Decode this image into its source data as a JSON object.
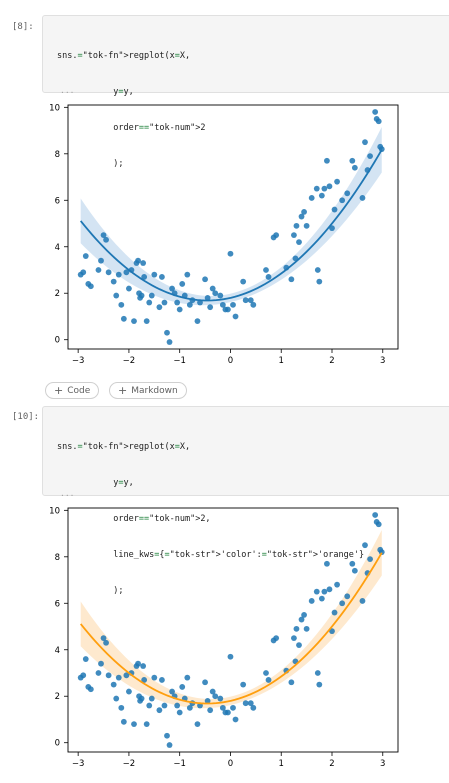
{
  "cells": [
    {
      "prompt": "[8]:",
      "code": [
        [
          "sns",
          ".",
          "regplot",
          "(x=X,"
        ],
        [
          "",
          "",
          "",
          "y=y,"
        ],
        [
          "",
          "",
          "",
          "order=2"
        ],
        [
          "",
          "",
          "",
          ");"
        ]
      ],
      "code_lines": [
        "sns.regplot(x=X,",
        "           y=y,",
        "           order=2",
        "           );"
      ],
      "line_color": "#1f77b4",
      "band_color": "#c6dbef"
    },
    {
      "prompt": "[10]:",
      "code_lines": [
        "sns.regplot(x=X,",
        "           y=y,",
        "           order=2,",
        "           line_kws={'color':'orange'}",
        "           );"
      ],
      "line_color": "#ff9f0e",
      "band_color": "#fde2bd"
    }
  ],
  "add_buttons": {
    "code_label": "Code",
    "markdown_label": "Markdown"
  },
  "colors": {
    "points": "#1f77b4",
    "points_alpha": "0.85"
  },
  "chart_data": [
    {
      "type": "scatter",
      "title": "",
      "xlabel": "",
      "ylabel": "",
      "xlim": [
        -3.2,
        3.3
      ],
      "ylim": [
        -0.4,
        10.1
      ],
      "x_ticks": [
        -3,
        -2,
        -1,
        0,
        1,
        2,
        3
      ],
      "y_ticks": [
        0,
        2,
        4,
        6,
        8,
        10
      ],
      "fit": {
        "order": 2,
        "a": 0.55,
        "b": 0.5,
        "c": 1.8
      },
      "points": [
        [
          -2.95,
          2.8
        ],
        [
          -2.9,
          2.9
        ],
        [
          -2.85,
          3.6
        ],
        [
          -2.8,
          2.4
        ],
        [
          -2.75,
          2.3
        ],
        [
          -2.6,
          3.0
        ],
        [
          -2.55,
          3.4
        ],
        [
          -2.5,
          4.5
        ],
        [
          -2.45,
          4.3
        ],
        [
          -2.4,
          2.9
        ],
        [
          -2.3,
          2.5
        ],
        [
          -2.25,
          1.9
        ],
        [
          -2.2,
          2.8
        ],
        [
          -2.15,
          1.5
        ],
        [
          -2.1,
          0.9
        ],
        [
          -2.05,
          2.9
        ],
        [
          -2.0,
          2.2
        ],
        [
          -1.95,
          3.0
        ],
        [
          -1.9,
          0.8
        ],
        [
          -1.85,
          3.3
        ],
        [
          -1.82,
          3.4
        ],
        [
          -1.8,
          2.0
        ],
        [
          -1.78,
          1.8
        ],
        [
          -1.75,
          1.9
        ],
        [
          -1.72,
          3.3
        ],
        [
          -1.7,
          2.7
        ],
        [
          -1.65,
          0.8
        ],
        [
          -1.6,
          1.6
        ],
        [
          -1.55,
          1.9
        ],
        [
          -1.5,
          2.8
        ],
        [
          -1.4,
          1.4
        ],
        [
          -1.35,
          2.7
        ],
        [
          -1.3,
          1.6
        ],
        [
          -1.25,
          0.3
        ],
        [
          -1.2,
          -0.1
        ],
        [
          -1.15,
          2.2
        ],
        [
          -1.1,
          2.0
        ],
        [
          -1.05,
          1.6
        ],
        [
          -1.0,
          1.3
        ],
        [
          -0.95,
          2.4
        ],
        [
          -0.9,
          1.9
        ],
        [
          -0.85,
          2.8
        ],
        [
          -0.8,
          1.5
        ],
        [
          -0.75,
          1.7
        ],
        [
          -0.65,
          0.8
        ],
        [
          -0.6,
          1.6
        ],
        [
          -0.5,
          2.6
        ],
        [
          -0.45,
          1.8
        ],
        [
          -0.4,
          1.4
        ],
        [
          -0.35,
          2.2
        ],
        [
          -0.3,
          2.0
        ],
        [
          -0.2,
          1.9
        ],
        [
          -0.15,
          1.5
        ],
        [
          -0.1,
          1.3
        ],
        [
          -0.05,
          1.3
        ],
        [
          0.0,
          3.7
        ],
        [
          0.05,
          1.5
        ],
        [
          0.1,
          1.0
        ],
        [
          0.25,
          2.5
        ],
        [
          0.3,
          1.7
        ],
        [
          0.4,
          1.7
        ],
        [
          0.45,
          1.5
        ],
        [
          0.7,
          3.0
        ],
        [
          0.75,
          2.7
        ],
        [
          0.85,
          4.4
        ],
        [
          0.9,
          4.5
        ],
        [
          1.1,
          3.1
        ],
        [
          1.2,
          2.6
        ],
        [
          1.25,
          4.5
        ],
        [
          1.28,
          3.5
        ],
        [
          1.3,
          4.9
        ],
        [
          1.35,
          4.2
        ],
        [
          1.4,
          5.3
        ],
        [
          1.45,
          5.5
        ],
        [
          1.5,
          4.9
        ],
        [
          1.6,
          6.1
        ],
        [
          1.7,
          6.5
        ],
        [
          1.72,
          3.0
        ],
        [
          1.75,
          2.5
        ],
        [
          1.8,
          6.2
        ],
        [
          1.85,
          6.5
        ],
        [
          1.9,
          7.7
        ],
        [
          1.95,
          6.6
        ],
        [
          2.0,
          4.8
        ],
        [
          2.05,
          5.6
        ],
        [
          2.1,
          6.8
        ],
        [
          2.2,
          6.0
        ],
        [
          2.3,
          6.3
        ],
        [
          2.4,
          7.7
        ],
        [
          2.45,
          7.4
        ],
        [
          2.6,
          6.1
        ],
        [
          2.65,
          8.5
        ],
        [
          2.7,
          7.3
        ],
        [
          2.75,
          7.9
        ],
        [
          2.85,
          9.8
        ],
        [
          2.88,
          9.5
        ],
        [
          2.92,
          9.4
        ],
        [
          2.95,
          8.3
        ],
        [
          2.98,
          8.2
        ]
      ]
    },
    {
      "type": "scatter",
      "title": "",
      "xlabel": "",
      "ylabel": "",
      "xlim": [
        -3.2,
        3.3
      ],
      "ylim": [
        -0.4,
        10.1
      ],
      "x_ticks": [
        -3,
        -2,
        -1,
        0,
        1,
        2,
        3
      ],
      "y_ticks": [
        0,
        2,
        4,
        6,
        8,
        10
      ],
      "fit": {
        "order": 2,
        "a": 0.55,
        "b": 0.5,
        "c": 1.8
      },
      "points": "same"
    }
  ]
}
